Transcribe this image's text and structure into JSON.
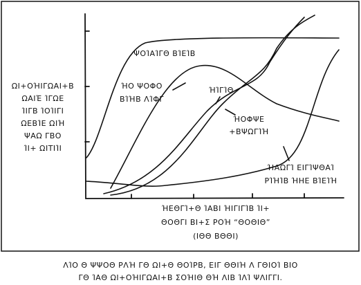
{
  "comic": {
    "y_axis_label": [
      "ΩΙ+ΟΉΙΓΩΑΙ+Β",
      "ΩΑΙΈ ΊΓΩΕ",
      "ΊΙΓΒ ΊΟΊΙΓΙ",
      "ΩΕΒΊΕ ΩΙΉ",
      "ΨΑΩ ΓΒΟ",
      "ΊΙ+ ΩΙΤΙΊΙ"
    ],
    "curve_labels": {
      "plateau": [
        "ΨΟΊΑΊΓΘ ΒΊΕΊΒ"
      ],
      "early": [
        "ΉΟ ΨΟΦΟ",
        "ΒΊΉΒ ΛΊΦΓ"
      ],
      "middle": [
        "ΉΊΓΊΘ"
      ],
      "hump": [
        "ΉΟΦΨΕ",
        "+ΒΨΩΓΊΉ"
      ],
      "late": [
        "ΉΑΩΓΊ ΕΙΓΊΨΘΑΊ",
        "ΡΊΉΊΒ ΉΗΕ ΒΊΕΊΉ"
      ]
    },
    "x_axis_label": [
      "ΉΕΘΓΊ+Θ ΊΑΒΙ ΉΙΓΙΓΊΒ ΊΙ+",
      "ΘΟΘΓΙ ΒΙ+Σ ΡΟΉ “ΘΟΘΙΘ”",
      "(ΙΘΘ ΒΘΘΙ)"
    ],
    "caption": [
      "ΛΊΟ Θ ΨΨΟΘ ΡΛΉ ΓΘ ΩΙ+Θ ΘΟΊΡΒ, ΕΙΓ ΘΘΙΉ Λ ΓΘΙΟΊ ΒΙΟ",
      "ΓΘ ΊΑΘ ΩΙ+ΟΉΙΓΩΑΙ+Β ΣΟΉΙΘ ΘΉ ΛΙΒ ΊΛΊ ΨΛΙΓΓΙ."
    ]
  }
}
